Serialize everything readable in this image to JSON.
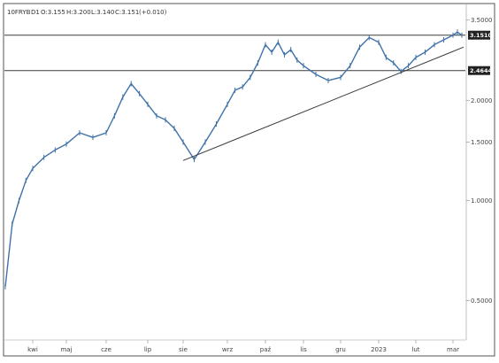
{
  "header": {
    "symbol": "10FRYB",
    "interval": "D1",
    "open": "O:3.155",
    "high": "H:3.200",
    "low": "L:3.140",
    "close": "C:3.151",
    "change": "(+0.010)"
  },
  "colors": {
    "series": "#3f72a8",
    "line": "#3a3a3a",
    "label_bg": "#222222",
    "frame": "#555555"
  },
  "chart_data": {
    "type": "line",
    "yscale": "log",
    "ylim": [
      0.38,
      3.9
    ],
    "yticks": [
      "3.5000",
      "2.0000",
      "1.5000",
      "1.0000",
      "0.5000"
    ],
    "xticks": [
      "kwi",
      "maj",
      "cze",
      "lip",
      "sie",
      "wrz",
      "paź",
      "lis",
      "gru",
      "2023",
      "lut",
      "mar"
    ],
    "price_labels": [
      "3.1510",
      "2.4644"
    ],
    "horizontal_levels": [
      3.151,
      2.4644
    ],
    "trendline": {
      "x": [
        "sie",
        "mar"
      ],
      "y": [
        1.32,
        2.9
      ]
    },
    "series": [
      {
        "x": [
          "",
          "",
          "",
          "",
          "kwi",
          "",
          "",
          "maj",
          "",
          "",
          "cze",
          "",
          "",
          "",
          "",
          "lip",
          "",
          "",
          "",
          "sie",
          "",
          "",
          "",
          "wrz",
          "",
          "",
          "",
          "",
          "paź",
          "",
          "",
          "",
          "",
          "",
          "lis",
          "",
          "",
          "gru",
          "",
          "",
          "",
          "2023",
          "",
          "",
          "",
          "",
          "lut",
          "",
          "",
          "",
          "mar",
          "",
          ""
        ],
        "values": [
          0.55,
          0.85,
          1.0,
          1.15,
          1.25,
          1.35,
          1.42,
          1.48,
          1.6,
          1.55,
          1.6,
          1.8,
          2.05,
          2.25,
          2.1,
          1.95,
          1.8,
          1.75,
          1.65,
          1.5,
          1.33,
          1.5,
          1.7,
          1.95,
          2.15,
          2.2,
          2.35,
          2.6,
          2.95,
          2.8,
          3.0,
          2.75,
          2.85,
          2.65,
          2.55,
          2.4,
          2.3,
          2.35,
          2.55,
          2.9,
          3.1,
          3.0,
          2.7,
          2.6,
          2.45,
          2.55,
          2.7,
          2.8,
          2.95,
          3.05,
          3.15,
          3.22,
          3.15
        ]
      }
    ]
  }
}
